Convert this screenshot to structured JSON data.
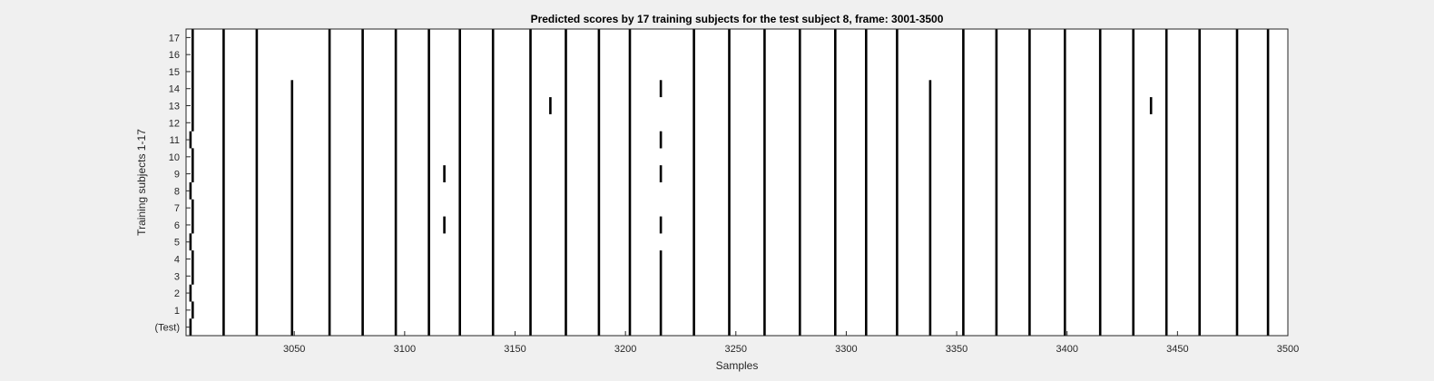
{
  "chart_data": {
    "type": "heatmap",
    "title": "Predicted scores by 17 training subjects for the test subject 8, frame: 3001-3500",
    "xlabel": "Samples",
    "ylabel": "Training subjects 1-17",
    "xlim": [
      3001,
      3500
    ],
    "x_ticks": [
      "3050",
      "3100",
      "3150",
      "3200",
      "3250",
      "3300",
      "3350",
      "3400",
      "3450",
      "3500"
    ],
    "y_ticks": [
      "(Test)",
      "1",
      "2",
      "3",
      "4",
      "5",
      "6",
      "7",
      "8",
      "9",
      "10",
      "11",
      "12",
      "13",
      "14",
      "15",
      "16",
      "17"
    ],
    "colors": {
      "background": "#ffffff",
      "marker": "#000000",
      "figure": "#f0f0f0"
    },
    "events": [
      {
        "x": 3003,
        "rows": [
          0,
          2,
          5,
          8,
          11
        ]
      },
      {
        "x": 3004,
        "rows": [
          1,
          3,
          4,
          6,
          7,
          9,
          10,
          12,
          13,
          14,
          15,
          16,
          17
        ]
      },
      {
        "x": 3018,
        "rows": [
          0,
          1,
          2,
          3,
          4,
          5,
          6,
          7,
          8,
          9,
          10,
          11,
          12,
          13,
          14,
          15,
          16,
          17
        ]
      },
      {
        "x": 3033,
        "rows": [
          0,
          1,
          2,
          3,
          4,
          5,
          6,
          7,
          8,
          9,
          10,
          11,
          12,
          13,
          14,
          15,
          16,
          17
        ]
      },
      {
        "x": 3049,
        "rows": [
          0,
          1,
          2,
          3,
          4,
          5,
          6,
          7,
          8,
          9,
          10,
          11,
          12,
          13,
          14
        ]
      },
      {
        "x": 3066,
        "rows": [
          0,
          1,
          2,
          3,
          4,
          5,
          6,
          7,
          8,
          9,
          10,
          11,
          12,
          13,
          14,
          15,
          16,
          17
        ]
      },
      {
        "x": 3081,
        "rows": [
          0,
          1,
          2,
          3,
          4,
          5,
          6,
          7,
          8,
          9,
          10,
          11,
          12,
          13,
          14,
          15,
          16,
          17
        ]
      },
      {
        "x": 3096,
        "rows": [
          0,
          1,
          2,
          3,
          4,
          5,
          6,
          7,
          8,
          9,
          10,
          11,
          12,
          13,
          14,
          15,
          16,
          17
        ]
      },
      {
        "x": 3111,
        "rows": [
          0,
          1,
          2,
          3,
          4,
          5,
          6,
          7,
          8,
          9,
          10,
          11,
          12,
          13,
          14,
          15,
          16,
          17
        ]
      },
      {
        "x": 3118,
        "rows": [
          6,
          9
        ]
      },
      {
        "x": 3125,
        "rows": [
          0,
          1,
          2,
          3,
          4,
          5,
          6,
          7,
          8,
          9,
          10,
          11,
          12,
          13,
          14,
          15,
          16,
          17
        ]
      },
      {
        "x": 3140,
        "rows": [
          0,
          1,
          2,
          3,
          4,
          5,
          6,
          7,
          8,
          9,
          10,
          11,
          12,
          13,
          14,
          15,
          16,
          17
        ]
      },
      {
        "x": 3157,
        "rows": [
          0,
          1,
          2,
          3,
          4,
          5,
          6,
          7,
          8,
          9,
          10,
          11,
          12,
          13,
          14,
          15,
          16,
          17
        ]
      },
      {
        "x": 3166,
        "rows": [
          13
        ]
      },
      {
        "x": 3173,
        "rows": [
          0,
          1,
          2,
          3,
          4,
          5,
          6,
          7,
          8,
          9,
          10,
          11,
          12,
          13,
          14,
          15,
          16,
          17
        ]
      },
      {
        "x": 3188,
        "rows": [
          0,
          1,
          2,
          3,
          4,
          5,
          6,
          7,
          8,
          9,
          10,
          11,
          12,
          13,
          14,
          15,
          16,
          17
        ]
      },
      {
        "x": 3202,
        "rows": [
          0,
          1,
          2,
          3,
          4,
          5,
          6,
          7,
          8,
          9,
          10,
          11,
          12,
          13,
          14,
          15,
          16,
          17
        ]
      },
      {
        "x": 3216,
        "rows": [
          0,
          1,
          2,
          3,
          4,
          6,
          9,
          11,
          14
        ]
      },
      {
        "x": 3231,
        "rows": [
          0,
          1,
          2,
          3,
          4,
          5,
          6,
          7,
          8,
          9,
          10,
          11,
          12,
          13,
          14,
          15,
          16,
          17
        ]
      },
      {
        "x": 3247,
        "rows": [
          0,
          1,
          2,
          3,
          4,
          5,
          6,
          7,
          8,
          9,
          10,
          11,
          12,
          13,
          14,
          15,
          16,
          17
        ]
      },
      {
        "x": 3263,
        "rows": [
          0,
          1,
          2,
          3,
          4,
          5,
          6,
          7,
          8,
          9,
          10,
          11,
          12,
          13,
          14,
          15,
          16,
          17
        ]
      },
      {
        "x": 3279,
        "rows": [
          0,
          1,
          2,
          3,
          4,
          5,
          6,
          7,
          8,
          9,
          10,
          11,
          12,
          13,
          14,
          15,
          16,
          17
        ]
      },
      {
        "x": 3295,
        "rows": [
          0,
          1,
          2,
          3,
          4,
          5,
          6,
          7,
          8,
          9,
          10,
          11,
          12,
          13,
          14,
          15,
          16,
          17
        ]
      },
      {
        "x": 3309,
        "rows": [
          0,
          1,
          2,
          3,
          4,
          5,
          6,
          7,
          8,
          9,
          10,
          11,
          12,
          13,
          14,
          15,
          16,
          17
        ]
      },
      {
        "x": 3323,
        "rows": [
          0,
          1,
          2,
          3,
          4,
          5,
          6,
          7,
          8,
          9,
          10,
          11,
          12,
          13,
          14,
          15,
          16,
          17
        ]
      },
      {
        "x": 3338,
        "rows": [
          0,
          1,
          2,
          3,
          4,
          5,
          6,
          7,
          8,
          9,
          10,
          11,
          12,
          13,
          14
        ]
      },
      {
        "x": 3353,
        "rows": [
          0,
          1,
          2,
          3,
          4,
          5,
          6,
          7,
          8,
          9,
          10,
          11,
          12,
          13,
          14,
          15,
          16,
          17
        ]
      },
      {
        "x": 3368,
        "rows": [
          0,
          1,
          2,
          3,
          4,
          5,
          6,
          7,
          8,
          9,
          10,
          11,
          12,
          13,
          14,
          15,
          16,
          17
        ]
      },
      {
        "x": 3383,
        "rows": [
          0,
          1,
          2,
          3,
          4,
          5,
          6,
          7,
          8,
          9,
          10,
          11,
          12,
          13,
          14,
          15,
          16,
          17
        ]
      },
      {
        "x": 3399,
        "rows": [
          0,
          1,
          2,
          3,
          4,
          5,
          6,
          7,
          8,
          9,
          10,
          11,
          12,
          13,
          14,
          15,
          16,
          17
        ]
      },
      {
        "x": 3415,
        "rows": [
          0,
          1,
          2,
          3,
          4,
          5,
          6,
          7,
          8,
          9,
          10,
          11,
          12,
          13,
          14,
          15,
          16,
          17
        ]
      },
      {
        "x": 3430,
        "rows": [
          0,
          1,
          2,
          3,
          4,
          5,
          6,
          7,
          8,
          9,
          10,
          11,
          12,
          13,
          14,
          15,
          16,
          17
        ]
      },
      {
        "x": 3438,
        "rows": [
          13
        ]
      },
      {
        "x": 3445,
        "rows": [
          0,
          1,
          2,
          3,
          4,
          5,
          6,
          7,
          8,
          9,
          10,
          11,
          12,
          13,
          14,
          15,
          16,
          17
        ]
      },
      {
        "x": 3460,
        "rows": [
          0,
          1,
          2,
          3,
          4,
          5,
          6,
          7,
          8,
          9,
          10,
          11,
          12,
          13,
          14,
          15,
          16,
          17
        ]
      },
      {
        "x": 3477,
        "rows": [
          0,
          1,
          2,
          3,
          4,
          5,
          6,
          7,
          8,
          9,
          10,
          11,
          12,
          13,
          14,
          15,
          16,
          17
        ]
      },
      {
        "x": 3491,
        "rows": [
          0,
          1,
          2,
          3,
          4,
          5,
          6,
          7,
          8,
          9,
          10,
          11,
          12,
          13,
          14,
          15,
          16,
          17
        ]
      }
    ]
  }
}
